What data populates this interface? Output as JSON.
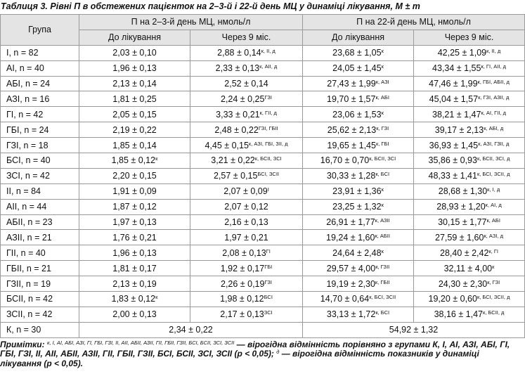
{
  "title": "Таблиця 3. Рівні П в обстежених пацієнток на 2–3-й і 22-й день МЦ у динаміці лікування, M ± m",
  "table": {
    "header": {
      "group": "Група",
      "period1": "П на 2–3-й день МЦ, нмоль/л",
      "period2": "П на 22-й день МЦ, нмоль/л",
      "sub": [
        "До лікування",
        "Через 9 міс.",
        "До лікування",
        "Через 9 міс."
      ]
    },
    "rows": [
      {
        "group": "І, n = 82",
        "cells": [
          {
            "value": "2,03 ± 0,10"
          },
          {
            "value": "2,88 ± 0,14",
            "sup": "к, ІІ, д"
          },
          {
            "value": "23,68 ± 1,05",
            "sup": "к"
          },
          {
            "value": "42,25 ± 1,09",
            "sup": "к, ІІ, д"
          }
        ]
      },
      {
        "group": "АІ, n = 40",
        "cells": [
          {
            "value": "1,96 ± 0,13"
          },
          {
            "value": "2,33 ± 0,13",
            "sup": "к, АІІ, д"
          },
          {
            "value": "24,05 ± 1,45",
            "sup": "к"
          },
          {
            "value": "43,34 ± 1,55",
            "sup": "к, ГІ, АІІ, д"
          }
        ]
      },
      {
        "group": "АБІ, n = 24",
        "cells": [
          {
            "value": "2,13 ± 0,14"
          },
          {
            "value": "2,52 ± 0,14"
          },
          {
            "value": "27,43 ± 1,99",
            "sup": "к, АЗІ"
          },
          {
            "value": "47,46 ± 1,99",
            "sup": "к, ГБІ, АБІІ, д"
          }
        ]
      },
      {
        "group": "АЗІ, n = 16",
        "cells": [
          {
            "value": "1,81 ± 0,25"
          },
          {
            "value": "2,24 ± 0,25",
            "sup": "ГЗІ"
          },
          {
            "value": "19,70 ± 1,57",
            "sup": "к, АБІ"
          },
          {
            "value": "45,04 ± 1,57",
            "sup": "к, ГЗІ, АЗІІ, д"
          }
        ]
      },
      {
        "group": "ГІ, n = 42",
        "cells": [
          {
            "value": "2,05 ± 0,15"
          },
          {
            "value": "3,33 ± 0,21",
            "sup": "к, ГІІ, д"
          },
          {
            "value": "23,06 ± 1,53",
            "sup": "к"
          },
          {
            "value": "38,21 ± 1,47",
            "sup": "к, АІ, ГІІ, д"
          }
        ]
      },
      {
        "group": "ГБІ, n = 24",
        "cells": [
          {
            "value": "2,19 ± 0,22"
          },
          {
            "value": "2,48 ± 0,22",
            "sup": "ГЗІ, ГБІІ"
          },
          {
            "value": "25,62 ± 2,13",
            "sup": "к, ГЗІ"
          },
          {
            "value": "39,17 ± 2,13",
            "sup": "к, АБІ, д"
          }
        ]
      },
      {
        "group": "ГЗІ, n = 18",
        "cells": [
          {
            "value": "1,85 ± 0,14"
          },
          {
            "value": "4,45 ± 0,15",
            "sup": "к, АЗІ, ГБІ, ЗІІ, д"
          },
          {
            "value": "19,65 ± 1,45",
            "sup": "к, ГБІ"
          },
          {
            "value": "36,93 ± 1,45",
            "sup": "к, АЗІ, ГЗІІ, д"
          }
        ]
      },
      {
        "group": "БСІ, n = 40",
        "cells": [
          {
            "value": "1,85 ± 0,12",
            "sup": "к"
          },
          {
            "value": "3,21 ± 0,22",
            "sup": "к, БСІІ, ЗСІ"
          },
          {
            "value": "16,70 ± 0,70",
            "sup": "к, БСІІ, ЗСІ"
          },
          {
            "value": "35,86 ± 0,93",
            "sup": "к, БСІІ, ЗСІ, д"
          }
        ]
      },
      {
        "group": "ЗСІ, n = 42",
        "cells": [
          {
            "value": "2,20 ± 0,15"
          },
          {
            "value": "2,57 ± 0,15",
            "sup": "БСІ, ЗСІІ"
          },
          {
            "value": "30,33 ± 1,28",
            "sup": "к, БСІ"
          },
          {
            "value": "48,33 ± 1,41",
            "sup": "к, БСІ, ЗСІІ, д"
          }
        ]
      },
      {
        "group": "ІІ, n = 84",
        "cells": [
          {
            "value": "1,91 ± 0,09"
          },
          {
            "value": "2,07 ± 0,09",
            "sup": "І"
          },
          {
            "value": "23,91 ± 1,36",
            "sup": "к"
          },
          {
            "value": "28,68 ± 1,30",
            "sup": "к, І, д"
          }
        ]
      },
      {
        "group": "АІІ, n = 44",
        "cells": [
          {
            "value": "1,87 ± 0,12"
          },
          {
            "value": "2,07 ± 0,12"
          },
          {
            "value": "23,25 ± 1,32",
            "sup": "к"
          },
          {
            "value": "28,93 ± 1,20",
            "sup": "к, АІ, д"
          }
        ]
      },
      {
        "group": "АБІІ, n = 23",
        "cells": [
          {
            "value": "1,97 ± 0,13"
          },
          {
            "value": "2,16 ± 0,13"
          },
          {
            "value": "26,91 ± 1,77",
            "sup": "к, АЗІІ"
          },
          {
            "value": "30,15 ± 1,77",
            "sup": "к, АБІ"
          }
        ]
      },
      {
        "group": "АЗІІ, n = 21",
        "cells": [
          {
            "value": "1,76 ± 0,21"
          },
          {
            "value": "1,97 ± 0,21"
          },
          {
            "value": "19,24 ± 1,60",
            "sup": "к, АБІІ"
          },
          {
            "value": "27,59 ± 1,60",
            "sup": "к, АЗІ, д"
          }
        ]
      },
      {
        "group": "ГІІ, n = 40",
        "cells": [
          {
            "value": "1,96 ± 0,13"
          },
          {
            "value": "2,08 ± 0,13",
            "sup": "ГІ"
          },
          {
            "value": "24,64 ± 2,48",
            "sup": "к"
          },
          {
            "value": "28,40 ± 2,42",
            "sup": "к, ГІ"
          }
        ]
      },
      {
        "group": "ГБІІ, n = 21",
        "cells": [
          {
            "value": "1,81 ± 0,17"
          },
          {
            "value": "1,92 ± 0,17",
            "sup": "ГБІ"
          },
          {
            "value": "29,57 ± 4,00",
            "sup": "к, ГЗІІ"
          },
          {
            "value": "32,11 ± 4,00",
            "sup": "к"
          }
        ]
      },
      {
        "group": "ГЗІІ, n = 19",
        "cells": [
          {
            "value": "2,13 ± 0,19"
          },
          {
            "value": "2,26 ± 0,19",
            "sup": "ГЗІ"
          },
          {
            "value": "19,19 ± 2,30",
            "sup": "к, ГБІІ"
          },
          {
            "value": "24,30 ± 2,30",
            "sup": "к, ГЗІ"
          }
        ]
      },
      {
        "group": "БСІІ, n = 42",
        "cells": [
          {
            "value": "1,83 ± 0,12",
            "sup": "к"
          },
          {
            "value": "1,98 ± 0,12",
            "sup": "БСІ"
          },
          {
            "value": "14,70 ± 0,64",
            "sup": "к, БСІ, ЗСІІ"
          },
          {
            "value": "19,20 ± 0,60",
            "sup": "к, БСІ, ЗСІІ, д"
          }
        ]
      },
      {
        "group": "ЗСІІ, n = 42",
        "cells": [
          {
            "value": "2,00 ± 0,13"
          },
          {
            "value": "2,17 ± 0,13",
            "sup": "ЗСІ"
          },
          {
            "value": "33,13 ± 1,72",
            "sup": "к, БСІ"
          },
          {
            "value": "38,16 ± 1,47",
            "sup": "к, БСІІ, д"
          }
        ]
      },
      {
        "group": "К, n = 30",
        "cells": [
          {
            "value": "2,34 ± 0,22"
          },
          {
            "value": "54,92 ± 1,32"
          }
        ]
      }
    ]
  },
  "notes": {
    "label": "Примітки:",
    "marks": "к, І, АІ, АБІ, АЗІ, ГІ, ГБІ, ГЗІ, ІІ, АІІ, АБІІ, АЗІІ, ГІІ, ГБІІ, ГЗІІ, БСІ, БСІІ, ЗСІ, ЗСІІ",
    "text1": " — вірогідна відмінність порівняно з групами К, І, АІ, АЗІ, АБІ, ГІ, ГБІ, ГЗІ, ІІ, АІІ, АБІІ, АЗІІ, ГІІ, ГБІІ, ГЗІІ, БСІ, БСІІ, ЗСІ, ЗСІІ (p < 0,05); ",
    "dmark": "д",
    "text2": " — вірогідна відмінність показників у динаміці лікування (p < 0,05)."
  }
}
